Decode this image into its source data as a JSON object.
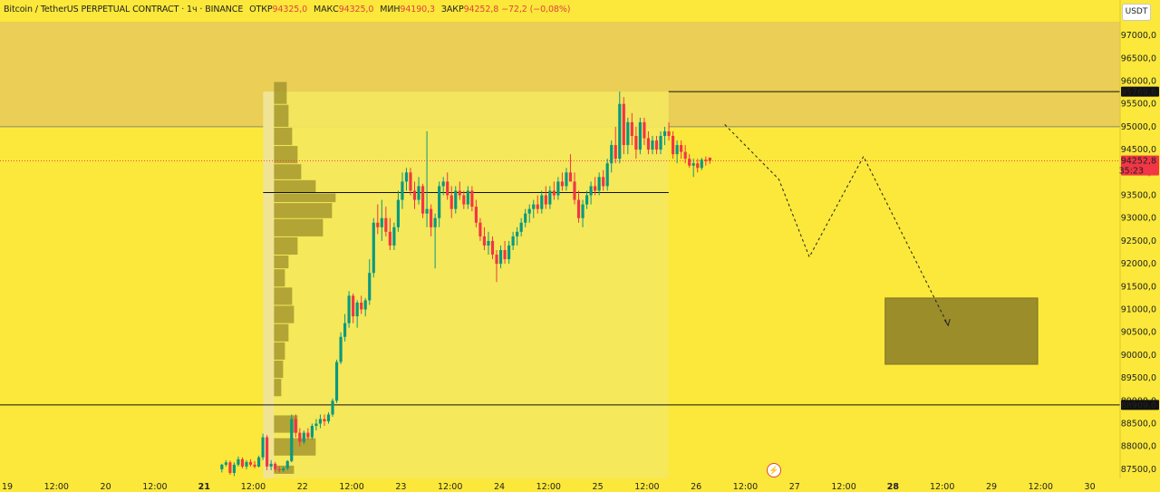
{
  "header": {
    "symbol": "Bitcoin / TetherUS PERPETUAL CONTRACT · 1ч · BINANCE",
    "open_label": "ОТКР",
    "open_value": "94325,0",
    "high_label": "МАКС",
    "high_value": "94325,0",
    "low_label": "МИН",
    "low_value": "94190,3",
    "close_label": "ЗАКР",
    "close_value": "94252,8",
    "change_value": "−72,2 (−0,08%)"
  },
  "currency_button": "USDT",
  "price_labels": {
    "resistance": "95769,6",
    "current": "94252,8",
    "countdown": "35:23",
    "support": "88909,0"
  },
  "colors": {
    "background": "#fbe83a",
    "bull": "#089981",
    "bear": "#f23645",
    "zone": "#e6c95a",
    "target_box": "#9b8d2a"
  },
  "chart_data": {
    "type": "candlestick",
    "timeframe": "1h",
    "y_axis": {
      "range": [
        87300,
        97300
      ],
      "ticks": [
        "87500,0",
        "88000,0",
        "88500,0",
        "89000,0",
        "89500,0",
        "90000,0",
        "90500,0",
        "91000,0",
        "91500,0",
        "92000,0",
        "92500,0",
        "93000,0",
        "93500,0",
        "94000,0",
        "94500,0",
        "95000,0",
        "95500,0",
        "96000,0",
        "96500,0",
        "97000,0"
      ]
    },
    "x_axis": {
      "ticks": [
        "19",
        "12:00",
        "20",
        "12:00",
        "21",
        "12:00",
        "22",
        "12:00",
        "23",
        "12:00",
        "24",
        "12:00",
        "25",
        "12:00",
        "26",
        "12:00",
        "27",
        "12:00",
        "28",
        "12:00",
        "29",
        "12:00",
        "30"
      ]
    },
    "horizontal_levels": [
      {
        "name": "resistance",
        "price": 95769.6
      },
      {
        "name": "support",
        "price": 88909.0
      },
      {
        "name": "poc",
        "price": 93560
      }
    ],
    "supply_zone": {
      "price_high": 97300,
      "price_low": 95000
    },
    "target_zone": {
      "price_high": 91250,
      "price_low": 89800,
      "day_start": 27.92,
      "day_end": 29.47
    },
    "projection_path": [
      {
        "day": 26.29,
        "price": 95050
      },
      {
        "day": 26.84,
        "price": 93850
      },
      {
        "day": 27.15,
        "price": 92150
      },
      {
        "day": 27.7,
        "price": 94350
      },
      {
        "day": 28.56,
        "price": 90650
      }
    ],
    "candles_day_start": 21.16,
    "candles_hours": 1,
    "candles": [
      [
        87500,
        87620,
        87430,
        87600
      ],
      [
        87600,
        87700,
        87560,
        87650
      ],
      [
        87650,
        87690,
        87380,
        87420
      ],
      [
        87420,
        87650,
        87350,
        87600
      ],
      [
        87600,
        87780,
        87560,
        87720
      ],
      [
        87720,
        87760,
        87520,
        87560
      ],
      [
        87560,
        87700,
        87500,
        87660
      ],
      [
        87660,
        87720,
        87560,
        87600
      ],
      [
        87600,
        87680,
        87520,
        87560
      ],
      [
        87560,
        87800,
        87540,
        87760
      ],
      [
        87760,
        88280,
        87700,
        88200
      ],
      [
        88200,
        88250,
        87480,
        87560
      ],
      [
        87560,
        87700,
        87480,
        87620
      ],
      [
        87620,
        87660,
        87450,
        87500
      ],
      [
        87500,
        87560,
        87430,
        87480
      ],
      [
        87480,
        87560,
        87440,
        87520
      ],
      [
        87520,
        87700,
        87480,
        87680
      ],
      [
        87680,
        88700,
        87650,
        88600
      ],
      [
        88600,
        88700,
        88200,
        88300
      ],
      [
        88300,
        88400,
        88000,
        88100
      ],
      [
        88100,
        88350,
        88050,
        88300
      ],
      [
        88300,
        88400,
        88150,
        88200
      ],
      [
        88200,
        88500,
        88150,
        88450
      ],
      [
        88450,
        88600,
        88350,
        88500
      ],
      [
        88500,
        88700,
        88400,
        88600
      ],
      [
        88600,
        88700,
        88450,
        88550
      ],
      [
        88550,
        88750,
        88500,
        88700
      ],
      [
        88700,
        89050,
        88650,
        89000
      ],
      [
        89000,
        89900,
        88950,
        89850
      ],
      [
        89850,
        90500,
        89800,
        90400
      ],
      [
        90400,
        90900,
        90300,
        90700
      ],
      [
        90700,
        91400,
        90600,
        91300
      ],
      [
        91300,
        91350,
        90700,
        90850
      ],
      [
        90850,
        91200,
        90600,
        91150
      ],
      [
        91150,
        91300,
        90900,
        91000
      ],
      [
        91000,
        91250,
        90850,
        91200
      ],
      [
        91200,
        92100,
        91100,
        91800
      ],
      [
        91800,
        93000,
        91700,
        92900
      ],
      [
        92900,
        93300,
        92650,
        92800
      ],
      [
        92800,
        93400,
        92500,
        93000
      ],
      [
        93000,
        93250,
        92600,
        92700
      ],
      [
        92700,
        93000,
        92300,
        92400
      ],
      [
        92400,
        92900,
        92300,
        92800
      ],
      [
        92800,
        93600,
        92700,
        93400
      ],
      [
        93400,
        94000,
        93200,
        93800
      ],
      [
        93800,
        94100,
        93600,
        94000
      ],
      [
        94000,
        94100,
        93500,
        93600
      ],
      [
        93600,
        93800,
        93200,
        93400
      ],
      [
        93400,
        93900,
        93300,
        93700
      ],
      [
        93700,
        93750,
        93000,
        93100
      ],
      [
        93100,
        94900,
        92800,
        93200
      ],
      [
        93200,
        93300,
        92600,
        92800
      ],
      [
        92800,
        93100,
        91900,
        93000
      ],
      [
        93000,
        93800,
        92800,
        93700
      ],
      [
        93700,
        93900,
        93500,
        93800
      ],
      [
        93800,
        94000,
        93400,
        93500
      ],
      [
        93500,
        93700,
        93000,
        93200
      ],
      [
        93200,
        93700,
        93100,
        93600
      ],
      [
        93600,
        93800,
        93400,
        93500
      ],
      [
        93500,
        93600,
        93200,
        93300
      ],
      [
        93300,
        93700,
        93200,
        93600
      ],
      [
        93600,
        93700,
        93150,
        93250
      ],
      [
        93250,
        93400,
        92800,
        92900
      ],
      [
        92900,
        93000,
        92500,
        92600
      ],
      [
        92600,
        92800,
        92300,
        92400
      ],
      [
        92400,
        92700,
        92200,
        92500
      ],
      [
        92500,
        92600,
        92100,
        92200
      ],
      [
        92200,
        92300,
        91600,
        92000
      ],
      [
        92000,
        92400,
        91900,
        92300
      ],
      [
        92300,
        92500,
        92000,
        92100
      ],
      [
        92100,
        92500,
        92000,
        92400
      ],
      [
        92400,
        92700,
        92300,
        92600
      ],
      [
        92600,
        92800,
        92400,
        92700
      ],
      [
        92700,
        93000,
        92600,
        92900
      ],
      [
        92900,
        93200,
        92800,
        93100
      ],
      [
        93100,
        93300,
        92900,
        93200
      ],
      [
        93200,
        93400,
        93000,
        93300
      ],
      [
        93300,
        93500,
        93100,
        93200
      ],
      [
        93200,
        93600,
        93100,
        93500
      ],
      [
        93500,
        93700,
        93200,
        93300
      ],
      [
        93300,
        93700,
        93200,
        93600
      ],
      [
        93600,
        93800,
        93400,
        93500
      ],
      [
        93500,
        93900,
        93400,
        93800
      ],
      [
        93800,
        94000,
        93600,
        93700
      ],
      [
        93700,
        94100,
        93600,
        94000
      ],
      [
        94000,
        94400,
        93900,
        93800
      ],
      [
        93800,
        94000,
        93300,
        93400
      ],
      [
        93400,
        93600,
        92900,
        93000
      ],
      [
        93000,
        93400,
        92800,
        93300
      ],
      [
        93300,
        93600,
        93200,
        93500
      ],
      [
        93500,
        93800,
        93300,
        93700
      ],
      [
        93700,
        93900,
        93500,
        93600
      ],
      [
        93600,
        94000,
        93500,
        93900
      ],
      [
        93900,
        94050,
        93600,
        93700
      ],
      [
        93700,
        94300,
        93600,
        94200
      ],
      [
        94200,
        94700,
        94000,
        94600
      ],
      [
        94600,
        95000,
        94200,
        94300
      ],
      [
        94300,
        95769.6,
        94200,
        95500
      ],
      [
        95500,
        95650,
        94400,
        94600
      ],
      [
        94600,
        95200,
        94400,
        95100
      ],
      [
        95100,
        95300,
        94600,
        94800
      ],
      [
        94800,
        95000,
        94300,
        94500
      ],
      [
        94500,
        95200,
        94400,
        95100
      ],
      [
        95100,
        95200,
        94600,
        94750
      ],
      [
        94750,
        94900,
        94400,
        94500
      ],
      [
        94500,
        94800,
        94400,
        94700
      ],
      [
        94700,
        94800,
        94400,
        94500
      ],
      [
        94500,
        94900,
        94400,
        94800
      ],
      [
        94800,
        95000,
        94600,
        94900
      ],
      [
        94900,
        95100,
        94700,
        94800
      ],
      [
        94800,
        94900,
        94300,
        94400
      ],
      [
        94400,
        94700,
        94200,
        94600
      ],
      [
        94600,
        94700,
        94300,
        94450
      ],
      [
        94450,
        94600,
        94200,
        94300
      ],
      [
        94300,
        94400,
        94100,
        94150
      ],
      [
        94150,
        94300,
        93900,
        94200
      ],
      [
        94200,
        94300,
        94000,
        94100
      ],
      [
        94100,
        94320,
        94050,
        94280
      ],
      [
        94280,
        94350,
        94150,
        94250
      ],
      [
        94325,
        94325,
        94190.3,
        94252.8
      ]
    ]
  }
}
